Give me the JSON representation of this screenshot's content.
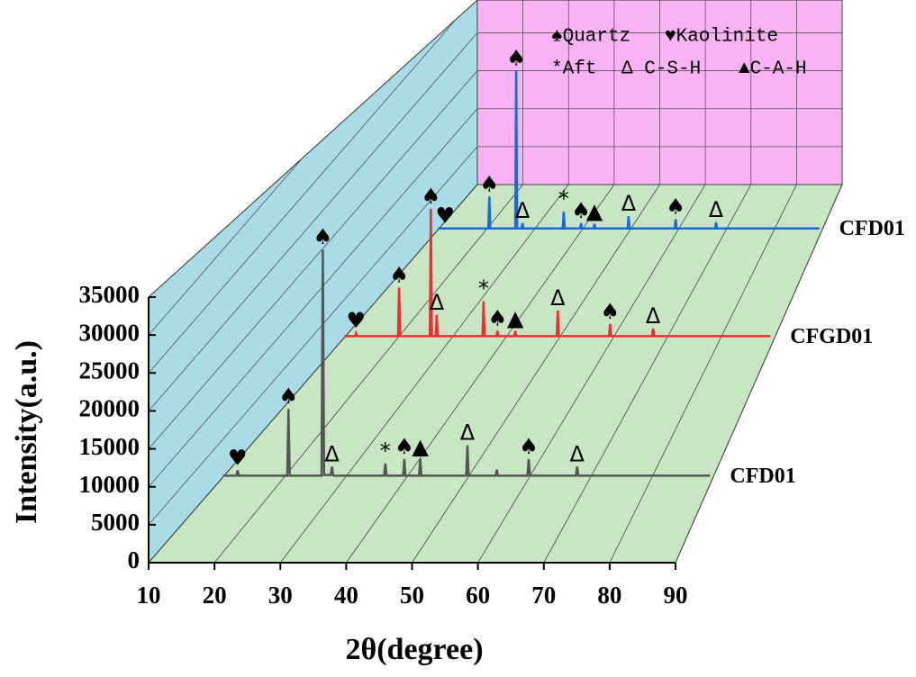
{
  "chart_data": {
    "type": "line3d",
    "xlabel": "2θ(degree)",
    "ylabel": "Intensity(a.u.)",
    "xlim": [
      10,
      90
    ],
    "xticks": [
      10,
      20,
      30,
      40,
      50,
      60,
      70,
      80,
      90
    ],
    "ylim": [
      0,
      35000
    ],
    "yticks": [
      0,
      5000,
      10000,
      15000,
      20000,
      25000,
      30000,
      35000
    ],
    "grid": true,
    "phase_legend": [
      "♠Quartz",
      "♥Kaolinite",
      "*Aft",
      "Δ C-S-H",
      "▲C-A-H"
    ],
    "series": [
      {
        "name": "CFD01",
        "color": "#1a6ad8",
        "x": [
          10,
          20.5,
          20.7,
          20.9,
          26.1,
          26.3,
          26.5,
          27.4,
          27.6,
          27.8,
          36,
          36.2,
          36.4,
          39.6,
          39.8,
          40,
          42.4,
          42.6,
          42.8,
          49.5,
          49.7,
          49.9,
          59.3,
          59.5,
          59.7,
          67.7,
          67.9,
          68.1,
          89.4
        ],
        "values": [
          200,
          200,
          4400,
          200,
          200,
          21000,
          200,
          200,
          900,
          200,
          200,
          2400,
          200,
          200,
          900,
          200,
          200,
          800,
          200,
          200,
          1800,
          200,
          200,
          1400,
          200,
          200,
          1000,
          200,
          200
        ],
        "peak_labels": [
          {
            "x": 11.5,
            "label": "♥"
          },
          {
            "x": 20.7,
            "label": "♠"
          },
          {
            "x": 26.3,
            "label": "♠"
          },
          {
            "x": 27.6,
            "label": "Δ"
          },
          {
            "x": 36.2,
            "label": "*"
          },
          {
            "x": 39.8,
            "label": "♠"
          },
          {
            "x": 42.6,
            "label": "▲"
          },
          {
            "x": 49.7,
            "label": "Δ"
          },
          {
            "x": 59.5,
            "label": "♠"
          },
          {
            "x": 67.9,
            "label": "Δ"
          }
        ]
      },
      {
        "name": "CFGD01",
        "color": "#e83232",
        "x": [
          10,
          12,
          12.2,
          12.4,
          20,
          20.2,
          20.4,
          25.9,
          26.1,
          26.3,
          27,
          27.2,
          27.4,
          35.7,
          35.9,
          36.1,
          38.3,
          38.5,
          38.7,
          41.6,
          41.8,
          42,
          49.5,
          49.7,
          49.9,
          59.2,
          59.4,
          59.6,
          67.2,
          67.4,
          67.6,
          89.2
        ],
        "values": [
          200,
          200,
          600,
          200,
          200,
          6600,
          200,
          200,
          17000,
          200,
          200,
          3000,
          200,
          200,
          4800,
          200,
          200,
          900,
          200,
          200,
          900,
          200,
          200,
          3600,
          200,
          200,
          1800,
          200,
          200,
          1200,
          200,
          200
        ],
        "peak_labels": [
          {
            "x": 12.2,
            "label": "♥"
          },
          {
            "x": 20.2,
            "label": "♠"
          },
          {
            "x": 26.1,
            "label": "♠"
          },
          {
            "x": 27.2,
            "label": "Δ"
          },
          {
            "x": 35.9,
            "label": "*"
          },
          {
            "x": 38.5,
            "label": "♠"
          },
          {
            "x": 41.8,
            "label": "▲"
          },
          {
            "x": 49.7,
            "label": "Δ"
          },
          {
            "x": 59.4,
            "label": "♠"
          },
          {
            "x": 67.4,
            "label": "Δ"
          }
        ]
      },
      {
        "name": "CFD01",
        "color": "#555555",
        "x": [
          10,
          12.2,
          12.4,
          12.6,
          20.5,
          20.7,
          20.9,
          26.1,
          26.3,
          26.5,
          27.6,
          27.8,
          28,
          36.3,
          36.5,
          36.7,
          39.4,
          39.6,
          39.8,
          42,
          42.2,
          42.4,
          49.7,
          49.9,
          50.1,
          54.5,
          54.7,
          54.9,
          59.7,
          59.9,
          60.1,
          67.6,
          67.8,
          68,
          89.5
        ],
        "values": [
          200,
          200,
          900,
          200,
          200,
          9000,
          200,
          200,
          30000,
          300,
          300,
          1400,
          200,
          200,
          1800,
          200,
          200,
          2400,
          200,
          200,
          2400,
          200,
          200,
          4200,
          200,
          200,
          1000,
          200,
          200,
          2400,
          200,
          200,
          1400,
          200,
          200
        ],
        "peak_labels": [
          {
            "x": 12.4,
            "label": "♥"
          },
          {
            "x": 20.7,
            "label": "♠"
          },
          {
            "x": 26.3,
            "label": "♠"
          },
          {
            "x": 27.8,
            "label": "Δ"
          },
          {
            "x": 36.5,
            "label": "*"
          },
          {
            "x": 39.6,
            "label": "♠"
          },
          {
            "x": 42.2,
            "label": "▲"
          },
          {
            "x": 49.9,
            "label": "Δ"
          },
          {
            "x": 59.9,
            "label": "♠"
          },
          {
            "x": 67.8,
            "label": "Δ"
          }
        ]
      }
    ]
  }
}
